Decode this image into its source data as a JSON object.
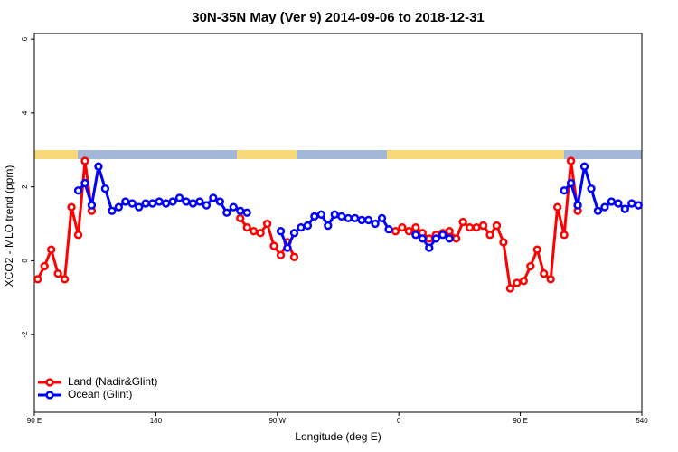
{
  "chart_data": {
    "type": "line",
    "title": "30N-35N May (Ver 9)   2014-09-06 to 2018-12-31",
    "x_label": "Longitude (deg E)",
    "y_label": "XCO2 - MLO trend (ppm)",
    "xlim": [
      90,
      540
    ],
    "xticks": [
      {
        "value": 90,
        "label": "90 E"
      },
      180,
      {
        "value": 270,
        "label": "90 W"
      },
      {
        "value": 360,
        "label": "0"
      },
      {
        "value": 450,
        "label": "90 E"
      },
      540
    ],
    "ylim": [
      -4.1,
      6.15
    ],
    "yticks": [
      -2,
      0,
      2,
      4,
      6
    ],
    "legend": "bottom-left",
    "x": [
      92.5,
      97.5,
      102.5,
      107.5,
      112.5,
      117.5,
      122.5,
      127.5,
      132.5,
      137.5,
      142.5,
      147.5,
      152.5,
      157.5,
      162.5,
      167.5,
      172.5,
      177.5,
      182.5,
      187.5,
      192.5,
      197.5,
      202.5,
      207.5,
      212.5,
      217.5,
      222.5,
      227.5,
      232.5,
      237.5,
      242.5,
      247.5,
      252.5,
      257.5,
      262.5,
      267.5,
      272.5,
      277.5,
      282.5,
      287.5,
      292.5,
      297.5,
      302.5,
      307.5,
      312.5,
      317.5,
      322.5,
      327.5,
      332.5,
      337.5,
      342.5,
      347.5,
      352.5,
      357.5,
      362.5,
      367.5,
      372.5,
      377.5,
      382.5,
      387.5,
      392.5,
      397.5,
      402.5,
      407.5,
      412.5,
      417.5,
      422.5,
      427.5,
      432.5,
      437.5,
      442.5,
      447.5,
      452.5,
      457.5,
      462.5,
      467.5,
      472.5,
      477.5,
      482.5,
      487.5,
      492.5,
      497.5,
      502.5,
      507.5,
      512.5,
      517.5,
      522.5,
      527.5,
      532.5,
      537.5
    ],
    "series": [
      {
        "name": "Land (Nadir&Glint)",
        "color": "#ff0000",
        "values": [
          -0.5,
          -0.15,
          0.3,
          -0.35,
          -0.5,
          1.45,
          0.7,
          2.7,
          1.35,
          null,
          null,
          null,
          null,
          null,
          null,
          null,
          null,
          null,
          null,
          null,
          null,
          null,
          null,
          null,
          null,
          null,
          null,
          null,
          null,
          null,
          1.15,
          0.9,
          0.8,
          0.75,
          1.0,
          0.4,
          0.15,
          0.5,
          0.1,
          null,
          null,
          null,
          null,
          null,
          null,
          null,
          null,
          null,
          null,
          null,
          null,
          null,
          null,
          0.8,
          0.9,
          0.8,
          0.9,
          0.75,
          0.6,
          0.7,
          0.75,
          0.8,
          0.6,
          1.05,
          0.9,
          0.9,
          0.95,
          0.7,
          0.95,
          0.5,
          -0.75,
          -0.6,
          -0.55,
          -0.15,
          0.3,
          -0.35,
          -0.5,
          1.45,
          0.7,
          2.7,
          1.35,
          null,
          null,
          null,
          null,
          null,
          null,
          null,
          null,
          null
        ]
      },
      {
        "name": "Ocean (Glint)",
        "color": "#0000ff",
        "values": [
          null,
          null,
          null,
          null,
          null,
          null,
          1.9,
          2.1,
          1.5,
          2.55,
          1.95,
          1.35,
          1.45,
          1.6,
          1.55,
          1.45,
          1.55,
          1.55,
          1.6,
          1.55,
          1.6,
          1.7,
          1.6,
          1.55,
          1.6,
          1.5,
          1.7,
          1.6,
          1.3,
          1.45,
          1.35,
          1.3,
          null,
          null,
          null,
          null,
          0.8,
          0.35,
          0.75,
          0.9,
          0.95,
          1.2,
          1.25,
          0.95,
          1.25,
          1.2,
          1.15,
          1.15,
          1.1,
          1.1,
          1.0,
          1.15,
          0.85,
          null,
          null,
          null,
          0.7,
          0.6,
          0.35,
          0.6,
          0.7,
          0.6,
          null,
          null,
          null,
          null,
          null,
          null,
          null,
          null,
          null,
          null,
          null,
          null,
          null,
          null,
          null,
          null,
          1.9,
          2.1,
          1.5,
          2.55,
          1.95,
          1.35,
          1.45,
          1.6,
          1.55,
          1.4,
          1.55,
          1.5
        ]
      }
    ]
  }
}
